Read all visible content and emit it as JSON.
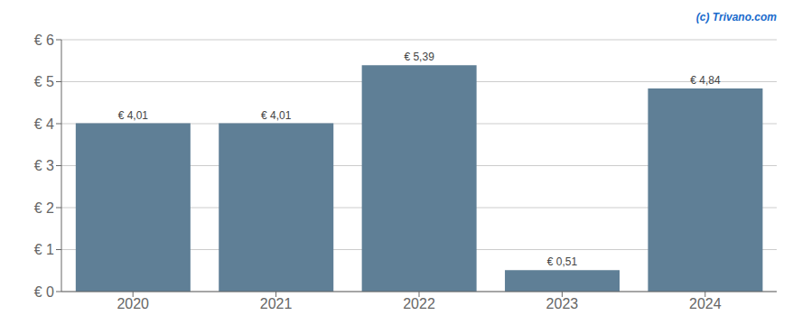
{
  "chart_data": {
    "type": "bar",
    "categories": [
      "2020",
      "2021",
      "2022",
      "2023",
      "2024"
    ],
    "values": [
      4.01,
      4.01,
      5.39,
      0.51,
      4.84
    ],
    "value_labels": [
      "€ 4,01",
      "€ 4,01",
      "€ 5,39",
      "€ 0,51",
      "€ 4,84"
    ],
    "data_labels": true,
    "color": "#5f7f96",
    "ylim": [
      0,
      6
    ],
    "yticks": [
      {
        "value": 0,
        "label": "€ 0"
      },
      {
        "value": 1,
        "label": "€ 1"
      },
      {
        "value": 2,
        "label": "€ 2"
      },
      {
        "value": 3,
        "label": "€ 3"
      },
      {
        "value": 4,
        "label": "€ 4"
      },
      {
        "value": 5,
        "label": "€ 5"
      },
      {
        "value": 6,
        "label": "€ 6"
      }
    ],
    "grid": true,
    "annotations": [
      "(c) Trivano.com"
    ]
  }
}
